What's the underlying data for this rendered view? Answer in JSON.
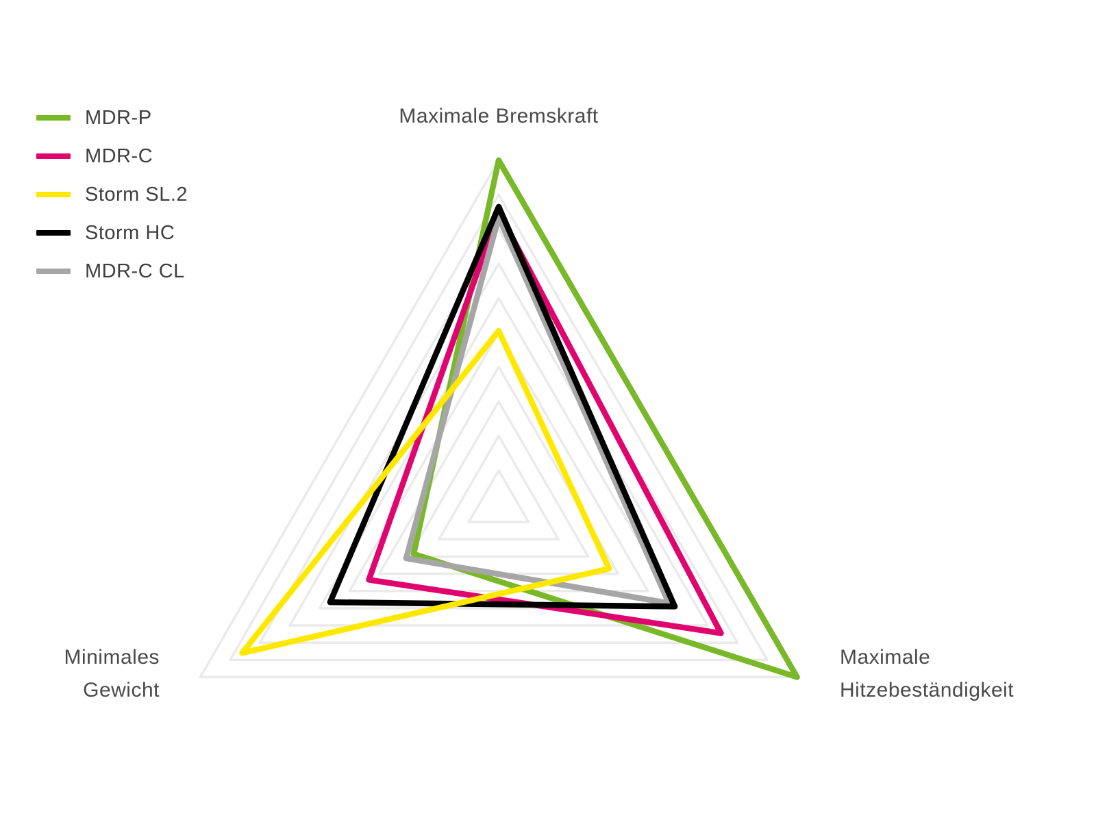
{
  "legend": {
    "items": [
      {
        "label": "MDR-P",
        "color": "#79b829"
      },
      {
        "label": "MDR-C",
        "color": "#e0046e"
      },
      {
        "label": "Storm SL.2",
        "color": "#ffe800"
      },
      {
        "label": "Storm HC",
        "color": "#000000"
      },
      {
        "label": "MDR-C CL",
        "color": "#a6a6a6"
      }
    ]
  },
  "chart_data": {
    "type": "radar",
    "title": "",
    "axes": [
      {
        "id": "bremskraft",
        "label": "Maximale Bremskraft",
        "label_lines": [
          "Maximale Bremskraft"
        ]
      },
      {
        "id": "hitzebestaendigkeit",
        "label": "Maximale Hitzebeständigkeit",
        "label_lines": [
          "Maximale",
          "Hitzebeständigkeit"
        ]
      },
      {
        "id": "gewicht",
        "label": "Minimales Gewicht",
        "label_lines": [
          "Minimales",
          "Gewicht"
        ]
      }
    ],
    "scale": {
      "min": 0,
      "max": 10,
      "grid_levels": 10
    },
    "series": [
      {
        "name": "MDR-P",
        "color": "#79b829",
        "values": [
          10.0,
          10.0,
          2.85
        ]
      },
      {
        "name": "MDR-C",
        "color": "#e0046e",
        "values": [
          8.5,
          7.45,
          4.35
        ]
      },
      {
        "name": "Storm SL.2",
        "color": "#ffe800",
        "values": [
          5.05,
          3.7,
          8.6
        ]
      },
      {
        "name": "Storm HC",
        "color": "#000000",
        "values": [
          8.65,
          5.9,
          5.65
        ]
      },
      {
        "name": "MDR-C CL",
        "color": "#a6a6a6",
        "values": [
          8.35,
          5.7,
          3.1
        ]
      }
    ],
    "grid_color": "#eaeaea",
    "grid_shape": "triangle",
    "legend_position": "top-left"
  }
}
